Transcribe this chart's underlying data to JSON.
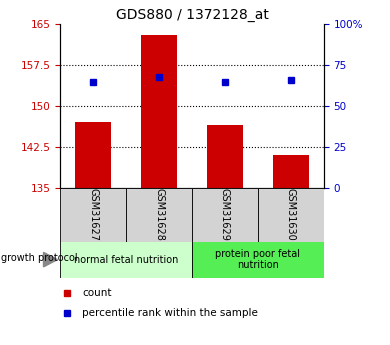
{
  "title": "GDS880 / 1372128_at",
  "samples": [
    "GSM31627",
    "GSM31628",
    "GSM31629",
    "GSM31630"
  ],
  "bar_values": [
    147.0,
    163.0,
    146.5,
    141.0
  ],
  "bar_bottom": 135,
  "percentile_values": [
    65.0,
    68.0,
    65.0,
    66.0
  ],
  "bar_color": "#cc0000",
  "dot_color": "#0000cc",
  "ylim_left": [
    135,
    165
  ],
  "ylim_right": [
    0,
    100
  ],
  "yticks_left": [
    135,
    142.5,
    150,
    157.5,
    165
  ],
  "ytick_labels_left": [
    "135",
    "142.5",
    "150",
    "157.5",
    "165"
  ],
  "yticks_right": [
    0,
    25,
    50,
    75,
    100
  ],
  "ytick_labels_right": [
    "0",
    "25",
    "50",
    "75",
    "100%"
  ],
  "groups": [
    {
      "label": "normal fetal nutrition",
      "indices": [
        0,
        1
      ],
      "color": "#ccffcc"
    },
    {
      "label": "protein poor fetal\nnutrition",
      "indices": [
        2,
        3
      ],
      "color": "#55ee55"
    }
  ],
  "group_label": "growth protocol",
  "legend_bar_label": "count",
  "legend_dot_label": "percentile rank within the sample",
  "bar_width": 0.55,
  "title_fontsize": 10,
  "tick_fontsize": 7.5,
  "sample_fontsize": 7,
  "group_fontsize": 7
}
